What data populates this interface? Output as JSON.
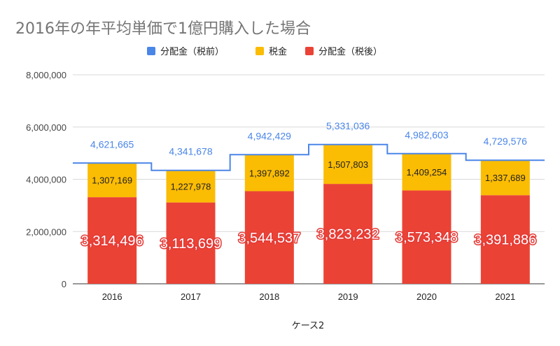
{
  "chart_data": {
    "type": "bar",
    "title": "2016年の年平均単価で1億円購入した場合",
    "xlabel": "ケース2",
    "ylabel": "",
    "ylim": [
      0,
      8000000
    ],
    "yticks": [
      {
        "value": 0,
        "label": "0"
      },
      {
        "value": 2000000,
        "label": "2,000,000"
      },
      {
        "value": 4000000,
        "label": "4,000,000"
      },
      {
        "value": 6000000,
        "label": "6,000,000"
      },
      {
        "value": 8000000,
        "label": "8,000,000"
      }
    ],
    "categories": [
      "2016",
      "2017",
      "2018",
      "2019",
      "2020",
      "2021"
    ],
    "grid": true,
    "legend_position": "top",
    "series": [
      {
        "name": "分配金（税前）",
        "kind": "step-line",
        "color": "#4a86e8",
        "values": [
          4621665,
          4341678,
          4942429,
          5331036,
          4982603,
          4729576
        ],
        "labels": [
          "4,621,665",
          "4,341,678",
          "4,942,429",
          "5,331,036",
          "4,982,603",
          "4,729,576"
        ]
      },
      {
        "name": "税金",
        "kind": "stacked-bar-top",
        "color": "#fbbc04",
        "values": [
          1307169,
          1227978,
          1397892,
          1507803,
          1409254,
          1337689
        ],
        "labels": [
          "1,307,169",
          "1,227,978",
          "1,397,892",
          "1,507,803",
          "1,409,254",
          "1,337,689"
        ]
      },
      {
        "name": "分配金（税後）",
        "kind": "stacked-bar-bottom",
        "color": "#ea4335",
        "values": [
          3314496,
          3113699,
          3544537,
          3823232,
          3573348,
          3391886
        ],
        "labels": [
          "3,314,496",
          "3,113,699",
          "3,544,537",
          "3,823,232",
          "3,573,348",
          "3,391,886"
        ]
      }
    ]
  }
}
